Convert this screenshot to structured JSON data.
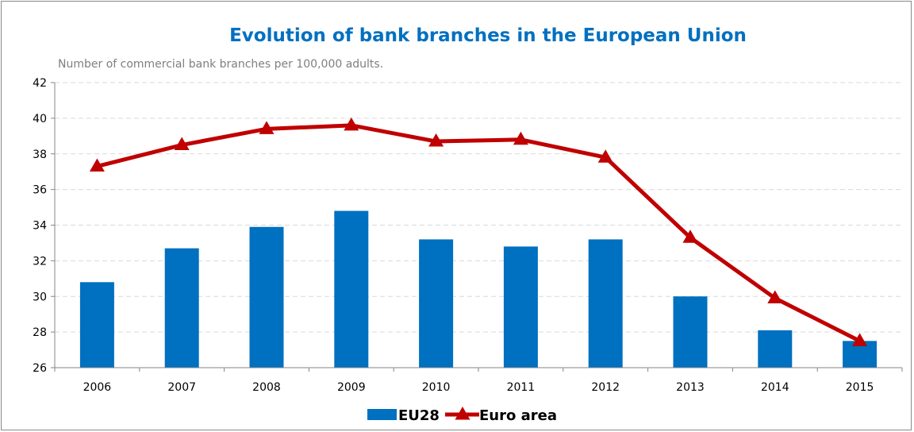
{
  "chart_data": {
    "type": "bar",
    "title": "Evolution of bank branches in the European Union",
    "subtitle": "Number of commercial bank branches per 100,000 adults.",
    "categories": [
      "2006",
      "2007",
      "2008",
      "2009",
      "2010",
      "2011",
      "2012",
      "2013",
      "2014",
      "2015"
    ],
    "ylim": [
      26,
      42
    ],
    "yticks": [
      26,
      28,
      30,
      32,
      34,
      36,
      38,
      40,
      42
    ],
    "grid": true,
    "legend_position": "bottom",
    "series": [
      {
        "name": "EU28",
        "type": "bar",
        "color": "#0070c0",
        "values": [
          30.8,
          32.7,
          33.9,
          34.8,
          33.2,
          32.8,
          33.2,
          30.0,
          28.1,
          27.5
        ]
      },
      {
        "name": "Euro area",
        "type": "line",
        "marker": "triangle",
        "color": "#c00000",
        "values": [
          37.3,
          38.5,
          39.4,
          39.6,
          38.7,
          38.8,
          37.8,
          33.3,
          29.9,
          27.5
        ]
      }
    ]
  }
}
